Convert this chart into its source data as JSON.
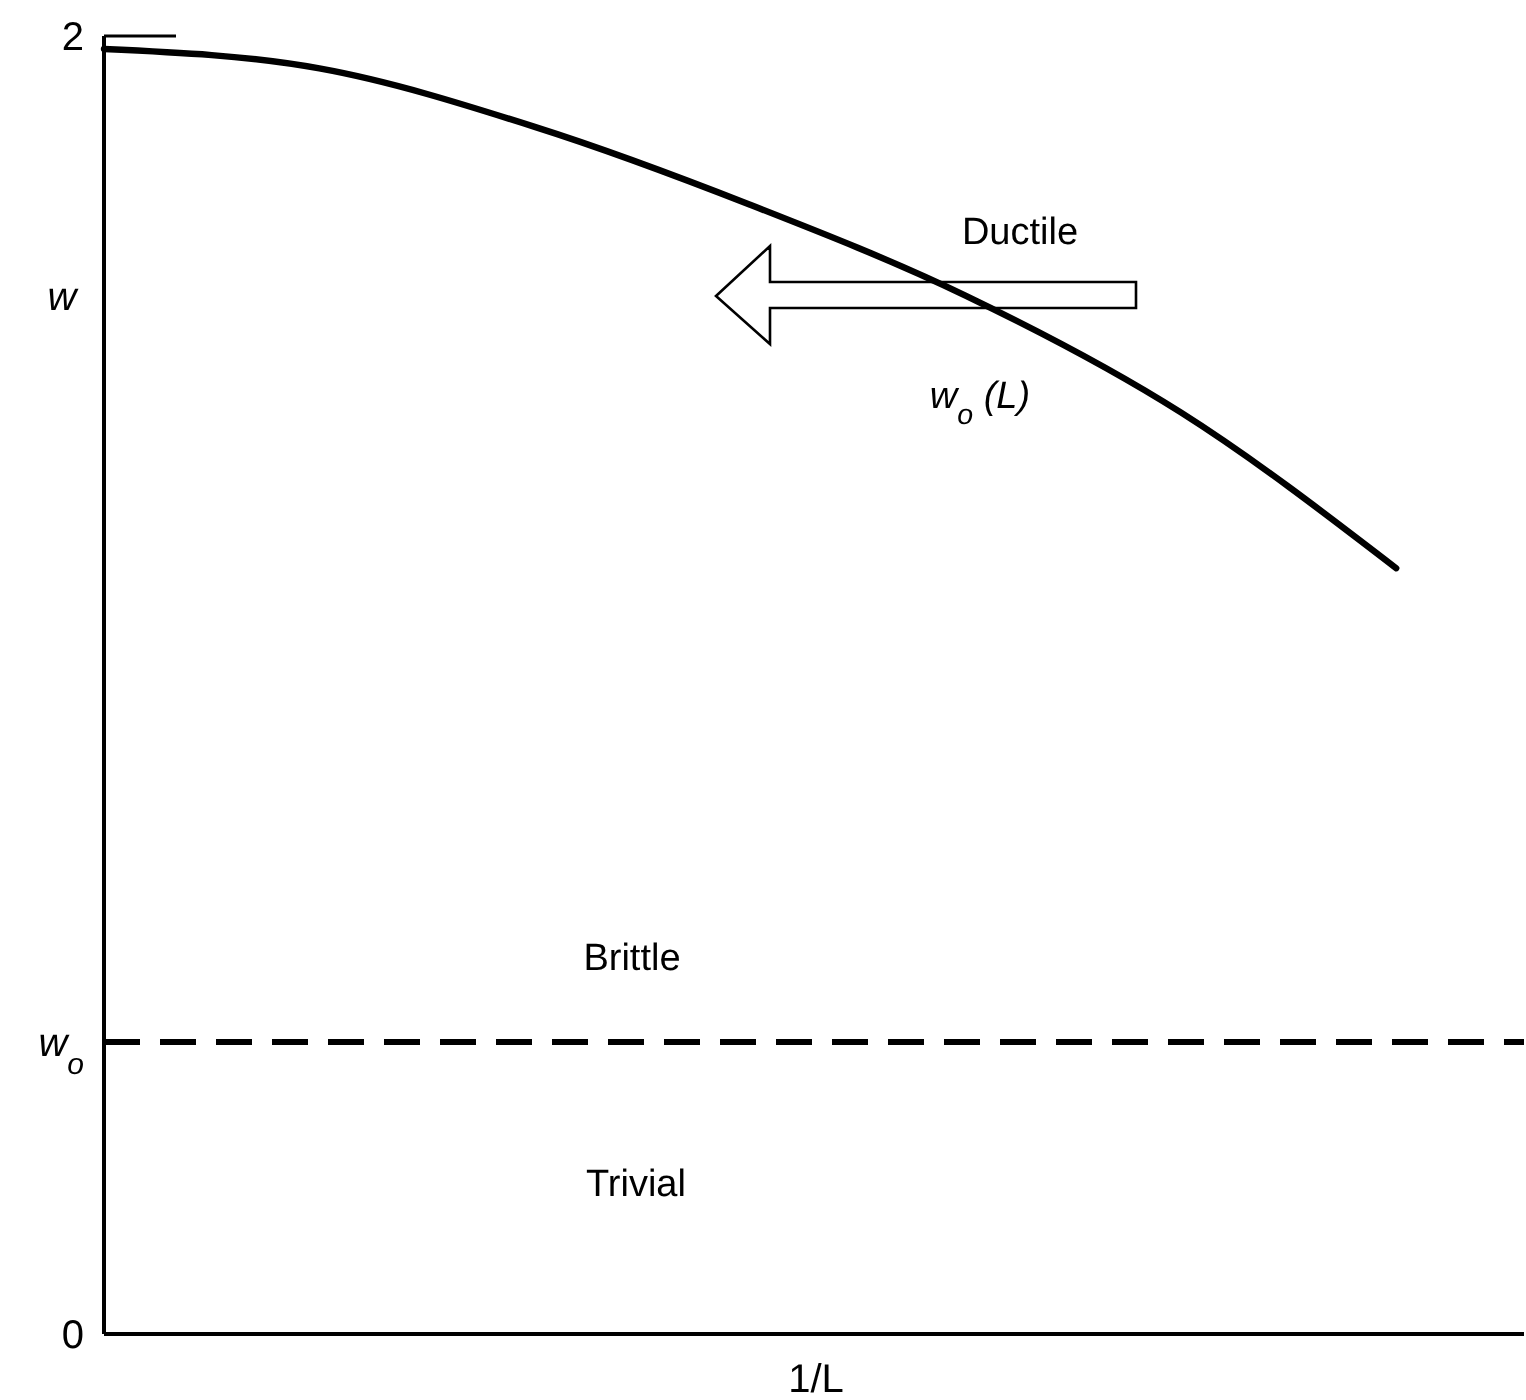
{
  "chart_data": {
    "type": "line",
    "xlabel": "1/L",
    "ylabel": "w",
    "categories": [
      null,
      null,
      null,
      null,
      null,
      null,
      null
    ],
    "series": [
      {
        "color": "#000000",
        "values": [
          1.98,
          1.95,
          1.86,
          1.74,
          1.6,
          1.42,
          1.18
        ]
      }
    ],
    "ylim": [
      0,
      2
    ],
    "yticks": [
      0,
      {
        "value": 0.45,
        "label": "w$_{o}$"
      },
      2
    ],
    "ref_lines": [
      {
        "axis": "y",
        "value": 0.45,
        "color": "#000000",
        "line_style": "dashed"
      }
    ],
    "annotations": [
      "Ductile",
      "w$_{o}$ (L)",
      "Brittle",
      "Trivial"
    ],
    "tick_labels": "y",
    "grid": false,
    "marker": "none",
    "line_style": "solid"
  }
}
